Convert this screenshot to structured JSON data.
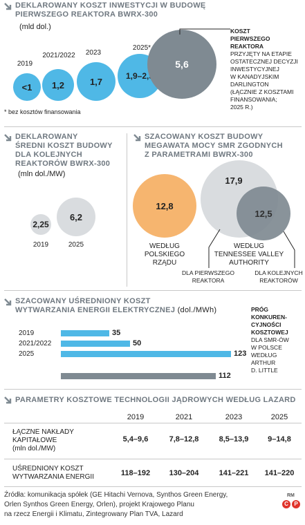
{
  "section1": {
    "title_line1": "DEKLAROWANY KOSZT INWESTYCJI W BUDOWĘ",
    "title_line2": "PIERWSZEGO REAKTORA BWRX-300",
    "unit": "(mld dol.)",
    "footnote": "* bez kosztów finansowania",
    "annotation_title": [
      "KOSZT",
      "PIERWSZEGO",
      "REAKTORA"
    ],
    "annotation_body": [
      "PRZYJĘTY NA ETAPIE",
      "OSTATECZNEJ DECYZJI",
      "INWESTYCYJNEJ",
      "W KANADYJSKIM",
      "DARLINGTON",
      "(ŁĄCZNIE Z KOSZTAMI",
      "FINANSOWANIA;",
      "2025 R.)"
    ]
  },
  "section2": {
    "title_line1": "DEKLAROWANY",
    "title_line2": "ŚREDNI KOSZT BUDOWY",
    "title_line3": "DLA KOLEJNYCH",
    "title_line4": "REAKTORÓW BWRX-300",
    "unit": "(mln dol./MW)"
  },
  "section3": {
    "title_line1": "SZACOWANY KOSZT BUDOWY",
    "title_line2": "MEGAWATA MOCY SMR ZGODNYCH",
    "title_line3": "Z PARAMETRAMI BWRX-300",
    "label_poland": [
      "WEDŁUG",
      "POLSKIEGO",
      "RZĄDU"
    ],
    "label_tva": [
      "WEDŁUG",
      "TENNESSEE VALLEY",
      "AUTHORITY"
    ],
    "label_first": [
      "DLA PIERWSZEGO",
      "REAKTORA"
    ],
    "label_next": [
      "DLA KOLEJNYCH",
      "REAKTORÓW"
    ]
  },
  "section4": {
    "title_line1": "SZACOWANY UŚREDNIONY KOSZT",
    "title_line2": "WYTWARZANIA ENERGII ELEKTRYCZNEJ",
    "unit": "(dol./MWh)",
    "threshold_title": [
      "PRÓG",
      "KONKUREN-",
      "CYJNOŚCI",
      "KOSZTOWEJ"
    ],
    "threshold_body": [
      "DLA SMR-ÓW",
      "W POLSCE",
      "WEDŁUG",
      "ARTHUR",
      "D. LITTLE"
    ]
  },
  "section5": {
    "title": "PARAMETRY KOSZTOWE TECHNOLOGII JĄDROWYCH WEDŁUG LAZARD",
    "years": [
      "2019",
      "2021",
      "2023",
      "2025"
    ],
    "rows": [
      {
        "label": [
          "ŁĄCZNE NAKŁADY",
          "KAPITAŁOWE"
        ],
        "sub": "(mln dol./MW)",
        "values": [
          "5,4–9,6",
          "7,8–12,8",
          "8,5–13,9",
          "9–14,8"
        ]
      },
      {
        "label": [
          "UŚREDNIONY KOSZT",
          "WYTWARZANIA ENERGII"
        ],
        "sub": "",
        "values": [
          "118–192",
          "130–204",
          "141–221",
          "141–220"
        ]
      }
    ]
  },
  "source": {
    "line1": "Źródła: komunikacja spółek (GE Hitachi Vernova, Synthos Green Energy,",
    "line2": "Orlen Synthos Green Energy, Orlen), projekt Krajowego Planu",
    "line3": "na rzecz Energii i Klimatu, Zintegrowany Plan TVA, Lazard",
    "logo_rm": "RM"
  },
  "colors": {
    "blue": "#4fb8e6",
    "gray": "#7f8a92",
    "light_gray": "#d9dcdf",
    "orange": "#f6b56f",
    "title_gray": "#6f7880"
  },
  "chart_data": [
    {
      "type": "bubble",
      "title": "DEKLAROWANY KOSZT INWESTYCJI W BUDOWĘ PIERWSZEGO REAKTORA BWRX-300",
      "unit": "(mld dol.)",
      "categories": [
        "2019",
        "2021/2022",
        "2023",
        "2025*",
        ""
      ],
      "labels": [
        "<1",
        "1,2",
        "1,7",
        "1,9–2,5",
        "5,6"
      ],
      "values": [
        1,
        1.2,
        1.7,
        2.2,
        5.6
      ]
    },
    {
      "type": "bubble",
      "title": "DEKLAROWANY ŚREDNI KOSZT BUDOWY DLA KOLEJNYCH REAKTORÓW BWRX-300",
      "unit": "(mln dol./MW)",
      "categories": [
        "2019",
        "2025"
      ],
      "labels": [
        "2,25",
        "6,2"
      ],
      "values": [
        2.25,
        6.2
      ]
    },
    {
      "type": "bubble",
      "title": "SZACOWANY KOSZT BUDOWY MEGAWATA MOCY SMR ZGODNYCH Z PARAMETRAMI BWRX-300",
      "categories": [
        "WEDŁUG POLSKIEGO RZĄDU",
        "DLA PIERWSZEGO REAKTORA",
        "DLA KOLEJNYCH REAKTORÓW"
      ],
      "labels": [
        "12,8",
        "17,9",
        "12,5"
      ],
      "values": [
        12.8,
        17.9,
        12.5
      ]
    },
    {
      "type": "bar",
      "title": "SZACOWANY UŚREDNIONY KOSZT WYTWARZANIA ENERGII ELEKTRYCZNEJ",
      "unit": "(dol./MWh)",
      "categories": [
        "2019",
        "2021/2022",
        "2025",
        ""
      ],
      "values": [
        35,
        50,
        123,
        112
      ],
      "labels": [
        "35",
        "50",
        "123",
        "112"
      ]
    },
    {
      "type": "table",
      "title": "PARAMETRY KOSZTOWE TECHNOLOGII JĄDROWYCH WEDŁUG LAZARD",
      "columns": [
        "2019",
        "2021",
        "2023",
        "2025"
      ],
      "rows": [
        {
          "name": "ŁĄCZNE NAKŁADY KAPITAŁOWE (mln dol./MW)",
          "values": [
            "5,4–9,6",
            "7,8–12,8",
            "8,5–13,9",
            "9–14,8"
          ]
        },
        {
          "name": "UŚREDNIONY KOSZT WYTWARZANIA ENERGII",
          "values": [
            "118–192",
            "130–204",
            "141–221",
            "141–220"
          ]
        }
      ]
    }
  ]
}
